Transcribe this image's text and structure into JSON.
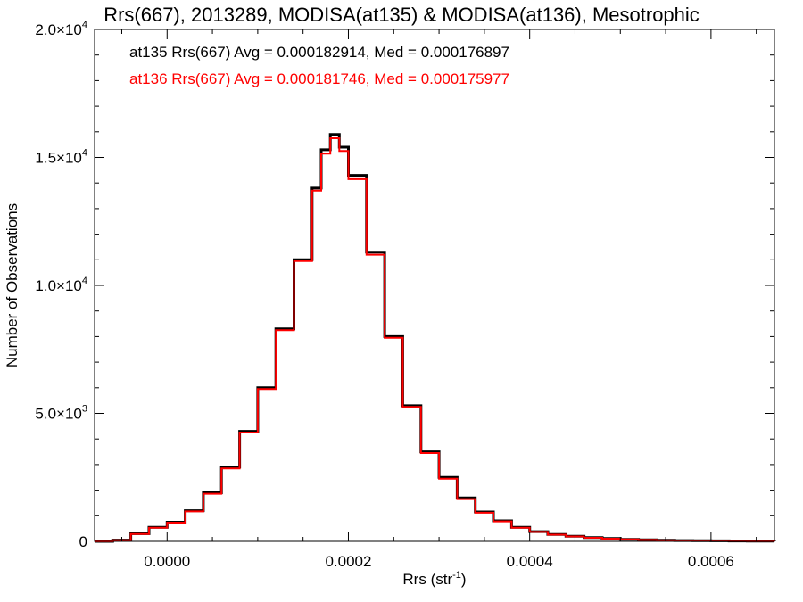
{
  "chart_data": {
    "type": "line",
    "title": "Rrs(667), 2013289, MODISA(at135) & MODISA(at136), Mesotrophic",
    "xlabel": "Rrs (str",
    "xlabel_sup": "-1",
    "xlabel_tail": ")",
    "ylabel": "Number of Observations",
    "xlim": [
      -8e-05,
      0.00067
    ],
    "ylim": [
      0,
      20000
    ],
    "grid": false,
    "step": true,
    "x_ticks": [
      {
        "value": 0.0,
        "label": "0.0000"
      },
      {
        "value": 0.0002,
        "label": "0.0002"
      },
      {
        "value": 0.0004,
        "label": "0.0004"
      },
      {
        "value": 0.0006,
        "label": "0.0006"
      }
    ],
    "y_ticks": [
      {
        "value": 0,
        "label": "0",
        "sup": ""
      },
      {
        "value": 5000,
        "label": "5.0×10",
        "sup": "3"
      },
      {
        "value": 10000,
        "label": "1.0×10",
        "sup": "4"
      },
      {
        "value": 15000,
        "label": "1.5×10",
        "sup": "4"
      },
      {
        "value": 20000,
        "label": "2.0×10",
        "sup": "4"
      }
    ],
    "x": [
      -8e-05,
      -6e-05,
      -4e-05,
      -2e-05,
      0.0,
      2e-05,
      4e-05,
      6e-05,
      8e-05,
      0.0001,
      0.00012,
      0.00014,
      0.00016,
      0.00017,
      0.00018,
      0.00019,
      0.0002,
      0.00022,
      0.00024,
      0.00026,
      0.00028,
      0.0003,
      0.00032,
      0.00034,
      0.00036,
      0.00038,
      0.0004,
      0.00042,
      0.00044,
      0.00046,
      0.00048,
      0.0005,
      0.00052,
      0.00054,
      0.00056,
      0.00058,
      0.0006,
      0.00062,
      0.00064,
      0.00067
    ],
    "series": [
      {
        "name": "at135",
        "color": "#000000",
        "values": [
          0,
          50,
          300,
          550,
          750,
          1200,
          1900,
          2900,
          4300,
          6000,
          8300,
          11000,
          13800,
          15300,
          15900,
          15400,
          14300,
          11300,
          8000,
          5300,
          3500,
          2500,
          1700,
          1150,
          800,
          550,
          380,
          270,
          200,
          150,
          110,
          80,
          60,
          45,
          30,
          25,
          20,
          15,
          10,
          5
        ]
      },
      {
        "name": "at136",
        "color": "#ff0000",
        "values": [
          0,
          45,
          290,
          530,
          730,
          1170,
          1860,
          2850,
          4250,
          5950,
          8250,
          10950,
          13700,
          15150,
          15750,
          15250,
          14150,
          11200,
          7950,
          5250,
          3450,
          2450,
          1650,
          1120,
          780,
          530,
          370,
          260,
          190,
          140,
          105,
          75,
          55,
          40,
          28,
          22,
          18,
          13,
          9,
          4
        ]
      }
    ],
    "annotations": [
      {
        "text": "at135 Rrs(667) Avg = 0.000182914, Med = 0.000176897",
        "color": "#000000"
      },
      {
        "text": "at136 Rrs(667) Avg = 0.000181746, Med = 0.000175977",
        "color": "#ff0000"
      }
    ]
  }
}
